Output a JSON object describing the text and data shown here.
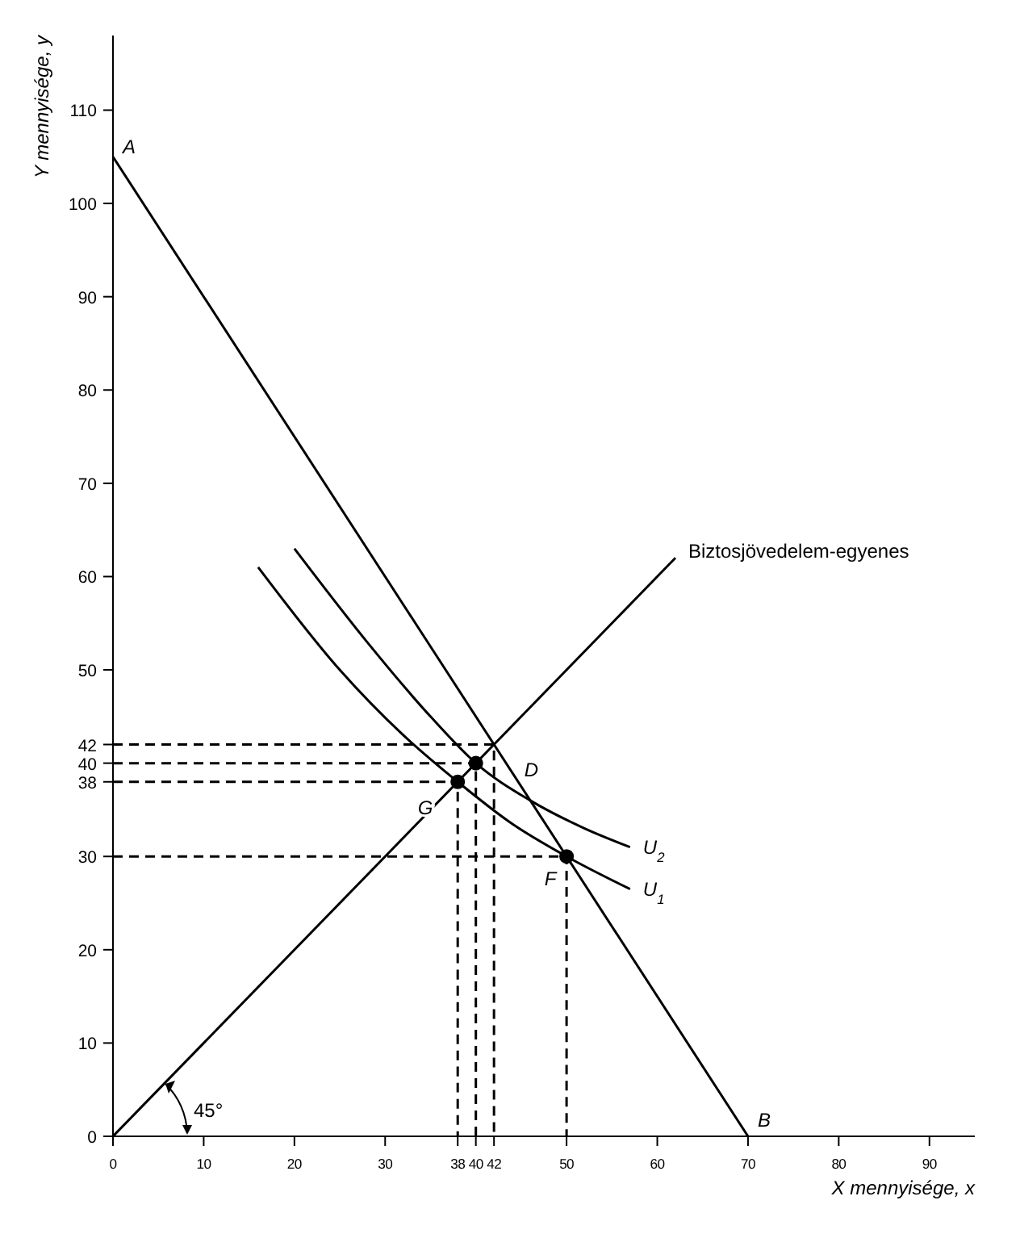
{
  "chart_data": {
    "type": "line",
    "xlabel": "X mennyisége, x",
    "ylabel": "Y mennyisége, y",
    "xlim": [
      0,
      95
    ],
    "ylim": [
      0,
      118
    ],
    "xticks": [
      0,
      10,
      20,
      30,
      38,
      40,
      42,
      50,
      60,
      70,
      80,
      90
    ],
    "yticks": [
      0,
      10,
      20,
      30,
      38,
      40,
      42,
      50,
      60,
      70,
      80,
      90,
      100,
      110
    ],
    "marker": "none",
    "series": [
      {
        "color": "#000000",
        "x": [
          0,
          70
        ],
        "values": [
          105,
          0
        ]
      },
      {
        "color": "#000000",
        "x": [
          0,
          62
        ],
        "values": [
          0,
          62
        ]
      },
      {
        "color": "#000000",
        "x": [
          16,
          25,
          32,
          38,
          44,
          50,
          57
        ],
        "values": [
          61,
          50,
          43,
          38,
          33.5,
          30,
          26.5
        ]
      },
      {
        "color": "#000000",
        "x": [
          20,
          28,
          35,
          40,
          46,
          52,
          57
        ],
        "values": [
          63,
          53,
          45,
          40,
          36,
          33,
          31
        ]
      },
      {
        "color": "#000000",
        "line_style": "dashed",
        "x": [
          0,
          42,
          42
        ],
        "values": [
          42,
          42,
          0
        ]
      },
      {
        "color": "#000000",
        "line_style": "dashed",
        "x": [
          0,
          40,
          40
        ],
        "values": [
          40,
          40,
          0
        ]
      },
      {
        "color": "#000000",
        "line_style": "dashed",
        "x": [
          0,
          38,
          38
        ],
        "values": [
          38,
          38,
          0
        ]
      },
      {
        "color": "#000000",
        "line_style": "dashed",
        "x": [
          0,
          50,
          50
        ],
        "values": [
          30,
          30,
          0
        ]
      },
      {
        "type": "scatter",
        "color": "#000000",
        "marker": "circle",
        "x": [
          40,
          38,
          50
        ],
        "values": [
          40,
          38,
          30
        ]
      }
    ],
    "annotations": [
      {
        "text": "A",
        "x": 0,
        "y": 105
      },
      {
        "text": "B",
        "x": 70,
        "y": 0
      },
      {
        "text": "D",
        "x": 40,
        "y": 40
      },
      {
        "text": "G",
        "x": 38,
        "y": 38
      },
      {
        "text": "F",
        "x": 50,
        "y": 30
      },
      {
        "text": "U$_{2}$",
        "x": 57,
        "y": 31
      },
      {
        "text": "U$_{1}$",
        "x": 57,
        "y": 26.5
      },
      {
        "text": "Biztosjövedelem-egyenes",
        "x": 62,
        "y": 62
      },
      "45°"
    ]
  }
}
